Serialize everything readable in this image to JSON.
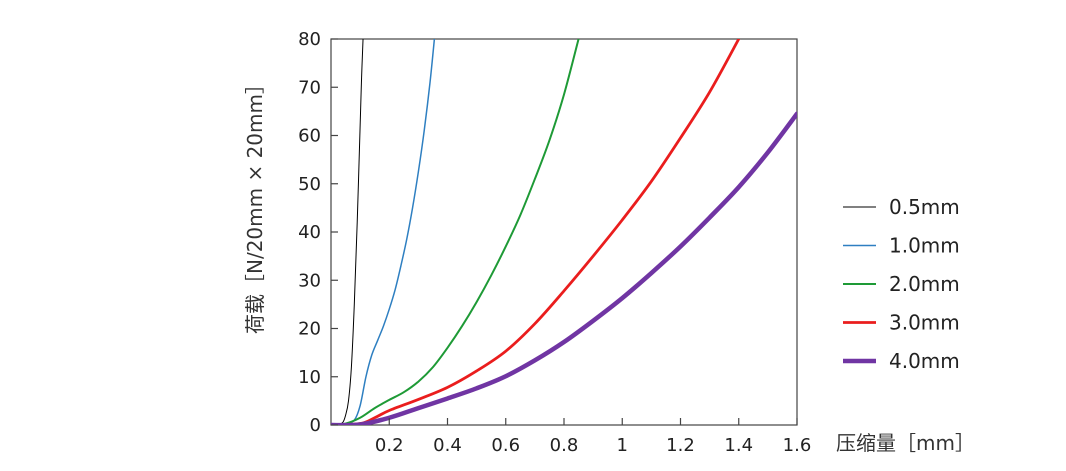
{
  "chart_data": {
    "type": "line",
    "title": "",
    "xlabel": "压缩量［mm］",
    "ylabel": "荷载［N/20mm × 20mm］",
    "xlim": [
      0,
      1.6
    ],
    "ylim": [
      0,
      80
    ],
    "x_ticks": [
      {
        "value": 0.2,
        "label": "0.2"
      },
      {
        "value": 0.4,
        "label": "0.4"
      },
      {
        "value": 0.6,
        "label": "0.6"
      },
      {
        "value": 0.8,
        "label": "0.8"
      },
      {
        "value": 1.0,
        "label": "1"
      },
      {
        "value": 1.2,
        "label": "1.2"
      },
      {
        "value": 1.4,
        "label": "1.4"
      },
      {
        "value": 1.6,
        "label": "1.6"
      }
    ],
    "y_ticks": [
      {
        "value": 0,
        "label": "0"
      },
      {
        "value": 10,
        "label": "10"
      },
      {
        "value": 20,
        "label": "20"
      },
      {
        "value": 30,
        "label": "30"
      },
      {
        "value": 40,
        "label": "40"
      },
      {
        "value": 50,
        "label": "50"
      },
      {
        "value": 60,
        "label": "60"
      },
      {
        "value": 70,
        "label": "70"
      },
      {
        "value": 80,
        "label": "80"
      }
    ],
    "grid": false,
    "legend_position": "right",
    "series": [
      {
        "name": "0.5mm",
        "color": "#000000",
        "line_width": 1,
        "x": [
          0.02,
          0.04,
          0.05,
          0.06,
          0.07,
          0.08,
          0.09,
          0.1,
          0.105,
          0.11
        ],
        "y": [
          0,
          0.5,
          2,
          5,
          12,
          25,
          42,
          62,
          72,
          80
        ]
      },
      {
        "name": "1.0mm",
        "color": "#2e7fc1",
        "line_width": 1.5,
        "x": [
          0.0,
          0.05,
          0.08,
          0.1,
          0.12,
          0.14,
          0.16,
          0.18,
          0.2,
          0.22,
          0.24,
          0.26,
          0.28,
          0.3,
          0.32,
          0.34,
          0.355
        ],
        "y": [
          0,
          0.3,
          1,
          4,
          10,
          14.5,
          17.5,
          20.5,
          24,
          28,
          33,
          38.5,
          45,
          52.5,
          61,
          71,
          80
        ]
      },
      {
        "name": "2.0mm",
        "color": "#1e9a36",
        "line_width": 2,
        "x": [
          0.0,
          0.05,
          0.1,
          0.15,
          0.2,
          0.25,
          0.3,
          0.35,
          0.4,
          0.45,
          0.5,
          0.55,
          0.6,
          0.65,
          0.7,
          0.75,
          0.8,
          0.85
        ],
        "y": [
          0,
          0.3,
          1.5,
          3.5,
          5.2,
          6.8,
          9,
          12,
          16,
          20.5,
          25.5,
          31,
          37,
          43.5,
          51,
          59,
          68.5,
          80
        ]
      },
      {
        "name": "3.0mm",
        "color": "#ea1d1d",
        "line_width": 2.8,
        "x": [
          0.0,
          0.1,
          0.15,
          0.2,
          0.3,
          0.4,
          0.5,
          0.6,
          0.7,
          0.8,
          0.9,
          1.0,
          1.1,
          1.2,
          1.3,
          1.4
        ],
        "y": [
          0,
          0.3,
          1.5,
          3,
          5.3,
          7.8,
          11.2,
          15.3,
          21,
          27.8,
          35,
          42.5,
          50.5,
          59.5,
          69,
          80
        ]
      },
      {
        "name": "4.0mm",
        "color": "#7035a3",
        "line_width": 4.5,
        "x": [
          0.0,
          0.1,
          0.2,
          0.3,
          0.4,
          0.5,
          0.6,
          0.7,
          0.8,
          0.9,
          1.0,
          1.1,
          1.2,
          1.3,
          1.4,
          1.5,
          1.6
        ],
        "y": [
          0,
          0.1,
          1.5,
          3.5,
          5.5,
          7.6,
          10.1,
          13.4,
          17.2,
          21.6,
          26.3,
          31.5,
          37,
          43,
          49.3,
          56.5,
          64.5
        ]
      }
    ]
  }
}
